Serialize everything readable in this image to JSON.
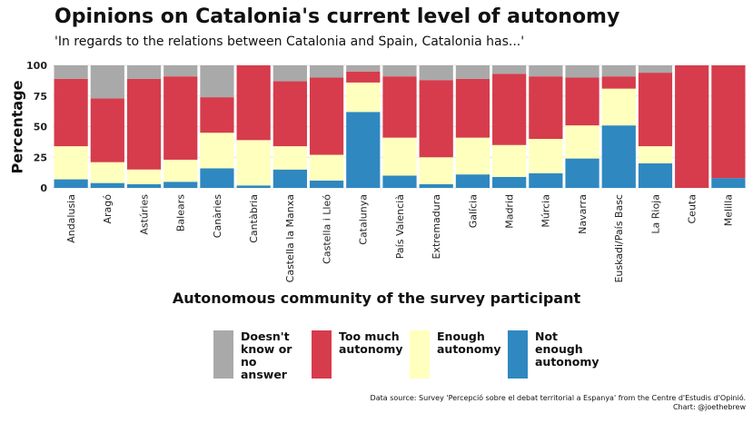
{
  "title": "Opinions on Catalonia's current level of autonomy",
  "subtitle": "'In regards to the relations between Catalonia and Spain, Catalonia has...'",
  "source_line1": "Data source: Survey 'Percepció sobre el debat territorial a Espanya' from the Centre d'Estudis d'Opinió.",
  "source_line2": "Chart: @joethebrew",
  "colors": {
    "dont_know": "#a9a9a9",
    "too_much": "#d63c4c",
    "enough": "#ffffbe",
    "not_enough": "#2f88c0"
  },
  "chart_data": {
    "type": "bar",
    "stacked": true,
    "xlabel": "Autonomous community of the survey participant",
    "ylabel": "Percentage",
    "ylim": [
      0,
      100
    ],
    "yticks": [
      0,
      25,
      50,
      75,
      100
    ],
    "grid": true,
    "legend_position": "bottom",
    "categories": [
      "Andalusia",
      "Aragó",
      "Astúries",
      "Balears",
      "Canàries",
      "Cantàbria",
      "Castella la Manxa",
      "Castella i Lleó",
      "Catalunya",
      "País Valencià",
      "Extremadura",
      "Galícia",
      "Madrid",
      "Múrcia",
      "Navarra",
      "Euskadi/País Basc",
      "La Rioja",
      "Ceuta",
      "Melilla"
    ],
    "series": [
      {
        "name": "Not enough autonomy",
        "key": "not_enough",
        "values": [
          7,
          4,
          3,
          5,
          16,
          2,
          15,
          6,
          62,
          10,
          3,
          11,
          9,
          12,
          24,
          51,
          20,
          0,
          8
        ]
      },
      {
        "name": "Enough autonomy",
        "key": "enough",
        "values": [
          27,
          17,
          12,
          18,
          29,
          37,
          19,
          21,
          24,
          31,
          22,
          30,
          26,
          28,
          27,
          30,
          14,
          0,
          0
        ]
      },
      {
        "name": "Too much autonomy",
        "key": "too_much",
        "values": [
          55,
          52,
          74,
          68,
          29,
          61,
          53,
          63,
          9,
          50,
          63,
          48,
          58,
          51,
          39,
          10,
          60,
          100,
          92
        ]
      },
      {
        "name": "Doesn't know or no answer",
        "key": "dont_know",
        "values": [
          11,
          27,
          11,
          9,
          26,
          0,
          13,
          10,
          5,
          9,
          12,
          11,
          7,
          9,
          10,
          9,
          6,
          0,
          0
        ]
      }
    ],
    "legend_order": [
      "dont_know",
      "too_much",
      "enough",
      "not_enough"
    ]
  }
}
